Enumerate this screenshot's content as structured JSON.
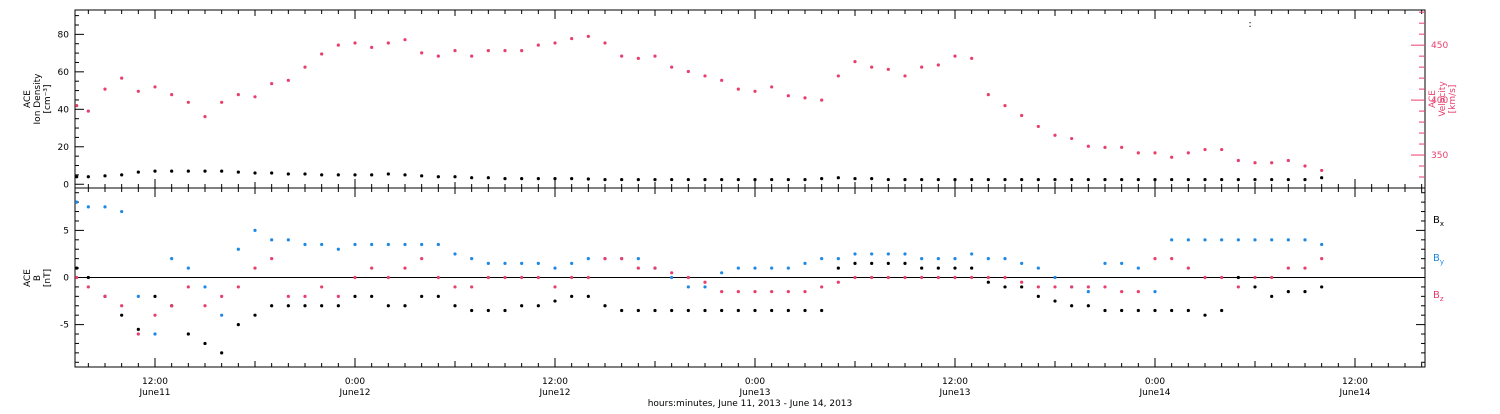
{
  "chart_data": {
    "type": "scatter",
    "time_axis": {
      "title": "hours:minutes, June 11, 2013 - June 14, 2013",
      "xlim_hours": [
        7.2,
        88.2
      ],
      "major_ticks": [
        {
          "h": 12,
          "time": "12:00",
          "date": "June11"
        },
        {
          "h": 24,
          "time": "0:00",
          "date": "June12"
        },
        {
          "h": 36,
          "time": "12:00",
          "date": "June12"
        },
        {
          "h": 48,
          "time": "0:00",
          "date": "June13"
        },
        {
          "h": 60,
          "time": "12:00",
          "date": "June13"
        },
        {
          "h": 72,
          "time": "0:00",
          "date": "June14"
        },
        {
          "h": 84,
          "time": "12:00",
          "date": "June14"
        }
      ],
      "minor_tick_step_hours": 1
    },
    "panels": [
      {
        "id": "plasma",
        "ylabel_left": [
          "ACE",
          "Ion Density",
          "[cm⁻³]"
        ],
        "ylim_left": [
          -2,
          93
        ],
        "yticks_left": [
          0,
          20,
          40,
          60,
          80
        ],
        "ylabel_right": [
          "ACE",
          "Velocity",
          "[km/s]"
        ],
        "ylim_right": [
          320,
          482
        ],
        "yticks_right": [
          350,
          400,
          450
        ],
        "series": [
          {
            "name": "",
            "axis": "right",
            "color": "#e83e6c",
            "x_hours": [
              7.3,
              8,
              9,
              10,
              11,
              12,
              13,
              14,
              15,
              16,
              17,
              18,
              19,
              20,
              21,
              22,
              23,
              24,
              25,
              26,
              27,
              28,
              29,
              30,
              31,
              32,
              33,
              34,
              35,
              36,
              37,
              38,
              39,
              40,
              41,
              42,
              43,
              44,
              45,
              46,
              47,
              48,
              49,
              50,
              51,
              52,
              53,
              54,
              55,
              56,
              57,
              58,
              59,
              60,
              61,
              62,
              63,
              64,
              65,
              66,
              67,
              68,
              69,
              70,
              71,
              72,
              73,
              74,
              75,
              76,
              77,
              78,
              79,
              80,
              81,
              82
            ],
            "values": [
              395,
              390,
              410,
              420,
              408,
              412,
              405,
              398,
              385,
              398,
              405,
              403,
              415,
              418,
              430,
              442,
              450,
              452,
              448,
              452,
              455,
              443,
              440,
              445,
              440,
              445,
              445,
              445,
              450,
              452,
              456,
              458,
              452,
              440,
              438,
              440,
              430,
              426,
              422,
              418,
              410,
              408,
              412,
              404,
              402,
              400,
              422,
              435,
              430,
              428,
              422,
              430,
              432,
              440,
              438,
              405,
              395,
              386,
              376,
              368,
              365,
              358,
              357,
              357,
              352,
              352,
              348,
              352,
              355,
              355,
              345,
              343,
              343,
              345,
              340,
              336
            ]
          },
          {
            "name": "",
            "axis": "left",
            "color": "#000000",
            "x_hours": [
              7.3,
              8,
              9,
              10,
              11,
              12,
              13,
              14,
              15,
              16,
              17,
              18,
              19,
              20,
              21,
              22,
              23,
              24,
              25,
              26,
              27,
              28,
              29,
              30,
              31,
              32,
              33,
              34,
              35,
              36,
              37,
              38,
              39,
              40,
              41,
              42,
              43,
              44,
              45,
              46,
              47,
              48,
              49,
              50,
              51,
              52,
              53,
              54,
              55,
              56,
              57,
              58,
              59,
              60,
              61,
              62,
              63,
              64,
              65,
              66,
              67,
              68,
              69,
              70,
              71,
              72,
              73,
              74,
              75,
              76,
              77,
              78,
              79,
              80,
              81,
              82
            ],
            "values": [
              4,
              4,
              4.5,
              5,
              6.5,
              7,
              7,
              7,
              7,
              7,
              6.5,
              6,
              6,
              5.5,
              5.5,
              5,
              5,
              5,
              5,
              5.5,
              5,
              4.5,
              4,
              4,
              3.5,
              3.5,
              3,
              3,
              3,
              3,
              3,
              2.8,
              2.5,
              2.5,
              2.5,
              2.5,
              2.5,
              2.5,
              2.5,
              2.5,
              2.5,
              2.5,
              2.5,
              2.5,
              2.5,
              3,
              3.5,
              3,
              3,
              2.5,
              2.5,
              2.5,
              2.5,
              2.5,
              2.5,
              2.5,
              2.5,
              2.5,
              2.5,
              2.5,
              2.5,
              2.5,
              2.5,
              2.5,
              2.5,
              2.5,
              2.5,
              2.5,
              2.5,
              2.5,
              2.5,
              2.5,
              2.5,
              2.5,
              2.5,
              3.5
            ]
          }
        ]
      },
      {
        "id": "field",
        "ylabel_left": [
          "ACE",
          "B",
          "[nT]"
        ],
        "ylim": [
          -9.5,
          9.5
        ],
        "yticks": [
          -5,
          0,
          5
        ],
        "zero_line": true,
        "series": [
          {
            "name": "Bx",
            "color": "#000000",
            "x_hours": [
              7.3,
              8,
              9,
              10,
              11,
              12,
              13,
              14,
              15,
              16,
              17,
              18,
              19,
              20,
              21,
              22,
              23,
              24,
              25,
              26,
              27,
              28,
              29,
              30,
              31,
              32,
              33,
              34,
              35,
              36,
              37,
              38,
              39,
              40,
              41,
              42,
              43,
              44,
              45,
              46,
              47,
              48,
              49,
              50,
              51,
              52,
              53,
              54,
              55,
              56,
              57,
              58,
              59,
              60,
              61,
              62,
              63,
              64,
              65,
              66,
              67,
              68,
              69,
              70,
              71,
              72,
              73,
              74,
              75,
              76,
              77,
              78,
              79,
              80,
              81,
              82
            ],
            "values": [
              1,
              0,
              -2,
              -4,
              -5.5,
              -2,
              -3,
              -6,
              -7,
              -8,
              -5,
              -4,
              -3,
              -3,
              -3,
              -3,
              -3,
              -2,
              -2,
              -3,
              -3,
              -2,
              -2,
              -3,
              -3.5,
              -3.5,
              -3.5,
              -3,
              -3,
              -2.5,
              -2,
              -2,
              -3,
              -3.5,
              -3.5,
              -3.5,
              -3.5,
              -3.5,
              -3.5,
              -3.5,
              -3.5,
              -3.5,
              -3.5,
              -3.5,
              -3.5,
              -3.5,
              1,
              1.5,
              1.5,
              1.5,
              1.5,
              1,
              1,
              1,
              1,
              -0.5,
              -1,
              -1,
              -2,
              -2.5,
              -3,
              -3,
              -3.5,
              -3.5,
              -3.5,
              -3.5,
              -3.5,
              -3.5,
              -4,
              -3.5,
              0,
              -1,
              -2,
              -1.5,
              -1.5,
              -1
            ]
          },
          {
            "name": "By",
            "color": "#1e88e5",
            "x_hours": [
              7.3,
              8,
              9,
              10,
              11,
              12,
              13,
              14,
              15,
              16,
              17,
              18,
              19,
              20,
              21,
              22,
              23,
              24,
              25,
              26,
              27,
              28,
              29,
              30,
              31,
              32,
              33,
              34,
              35,
              36,
              37,
              38,
              39,
              40,
              41,
              42,
              43,
              44,
              45,
              46,
              47,
              48,
              49,
              50,
              51,
              52,
              53,
              54,
              55,
              56,
              57,
              58,
              59,
              60,
              61,
              62,
              63,
              64,
              65,
              66,
              67,
              68,
              69,
              70,
              71,
              72,
              73,
              74,
              75,
              76,
              77,
              78,
              79,
              80,
              81,
              82
            ],
            "values": [
              8,
              7.5,
              7.5,
              7,
              -2,
              -6,
              2,
              1,
              -1,
              -4,
              3,
              5,
              4,
              4,
              3.5,
              3.5,
              3,
              3.5,
              3.5,
              3.5,
              3.5,
              3.5,
              3.5,
              2.5,
              2,
              1.5,
              1.5,
              1.5,
              1.5,
              1,
              1.5,
              2,
              2,
              2,
              2,
              1,
              0,
              -1,
              -1,
              0.5,
              1,
              1,
              1,
              1,
              1.5,
              2,
              2,
              2.5,
              2.5,
              2.5,
              2.5,
              2,
              2,
              2,
              2.5,
              2,
              2,
              1.5,
              1,
              0,
              -1,
              -1.5,
              1.5,
              1.5,
              1,
              -1.5,
              4,
              4,
              4,
              4,
              4,
              4,
              4,
              4,
              4,
              3.5
            ]
          },
          {
            "name": "Bz",
            "color": "#e83e6c",
            "x_hours": [
              7.3,
              8,
              9,
              10,
              11,
              12,
              13,
              14,
              15,
              16,
              17,
              18,
              19,
              20,
              21,
              22,
              23,
              24,
              25,
              26,
              27,
              28,
              29,
              30,
              31,
              32,
              33,
              34,
              35,
              36,
              37,
              38,
              39,
              40,
              41,
              42,
              43,
              44,
              45,
              46,
              47,
              48,
              49,
              50,
              51,
              52,
              53,
              54,
              55,
              56,
              57,
              58,
              59,
              60,
              61,
              62,
              63,
              64,
              65,
              66,
              67,
              68,
              69,
              70,
              71,
              72,
              73,
              74,
              75,
              76,
              77,
              78,
              79,
              80,
              81,
              82
            ],
            "values": [
              0,
              -1,
              -2,
              -3,
              -6,
              -4,
              -3,
              -1,
              -3,
              -2,
              -1,
              1,
              2,
              -2,
              -2,
              -1,
              -2,
              0,
              1,
              0,
              1,
              2,
              0,
              -1,
              -1,
              0,
              0,
              0,
              0,
              -1,
              0,
              0,
              2,
              2,
              1,
              1,
              0.5,
              0,
              -0.5,
              -1.5,
              -1.5,
              -1.5,
              -1.5,
              -1.5,
              -1.5,
              -1,
              -0.5,
              0,
              0,
              0,
              0,
              0,
              0,
              0,
              0,
              0,
              0,
              -0.5,
              -1,
              -1,
              -1,
              -1,
              -1,
              -1.5,
              -1.5,
              2,
              2,
              1,
              0,
              0,
              -1,
              0,
              0,
              1,
              1,
              2
            ]
          }
        ],
        "legend": [
          {
            "base": "B",
            "sub": "x",
            "color": "#000000"
          },
          {
            "base": "B",
            "sub": "y",
            "color": "#1e88e5"
          },
          {
            "base": "B",
            "sub": "z",
            "color": "#e83e6c"
          }
        ]
      }
    ],
    "annotations": [
      {
        "panel": "plasma",
        "text": ":",
        "x_hours": 77.6,
        "y_left": 84
      }
    ]
  }
}
